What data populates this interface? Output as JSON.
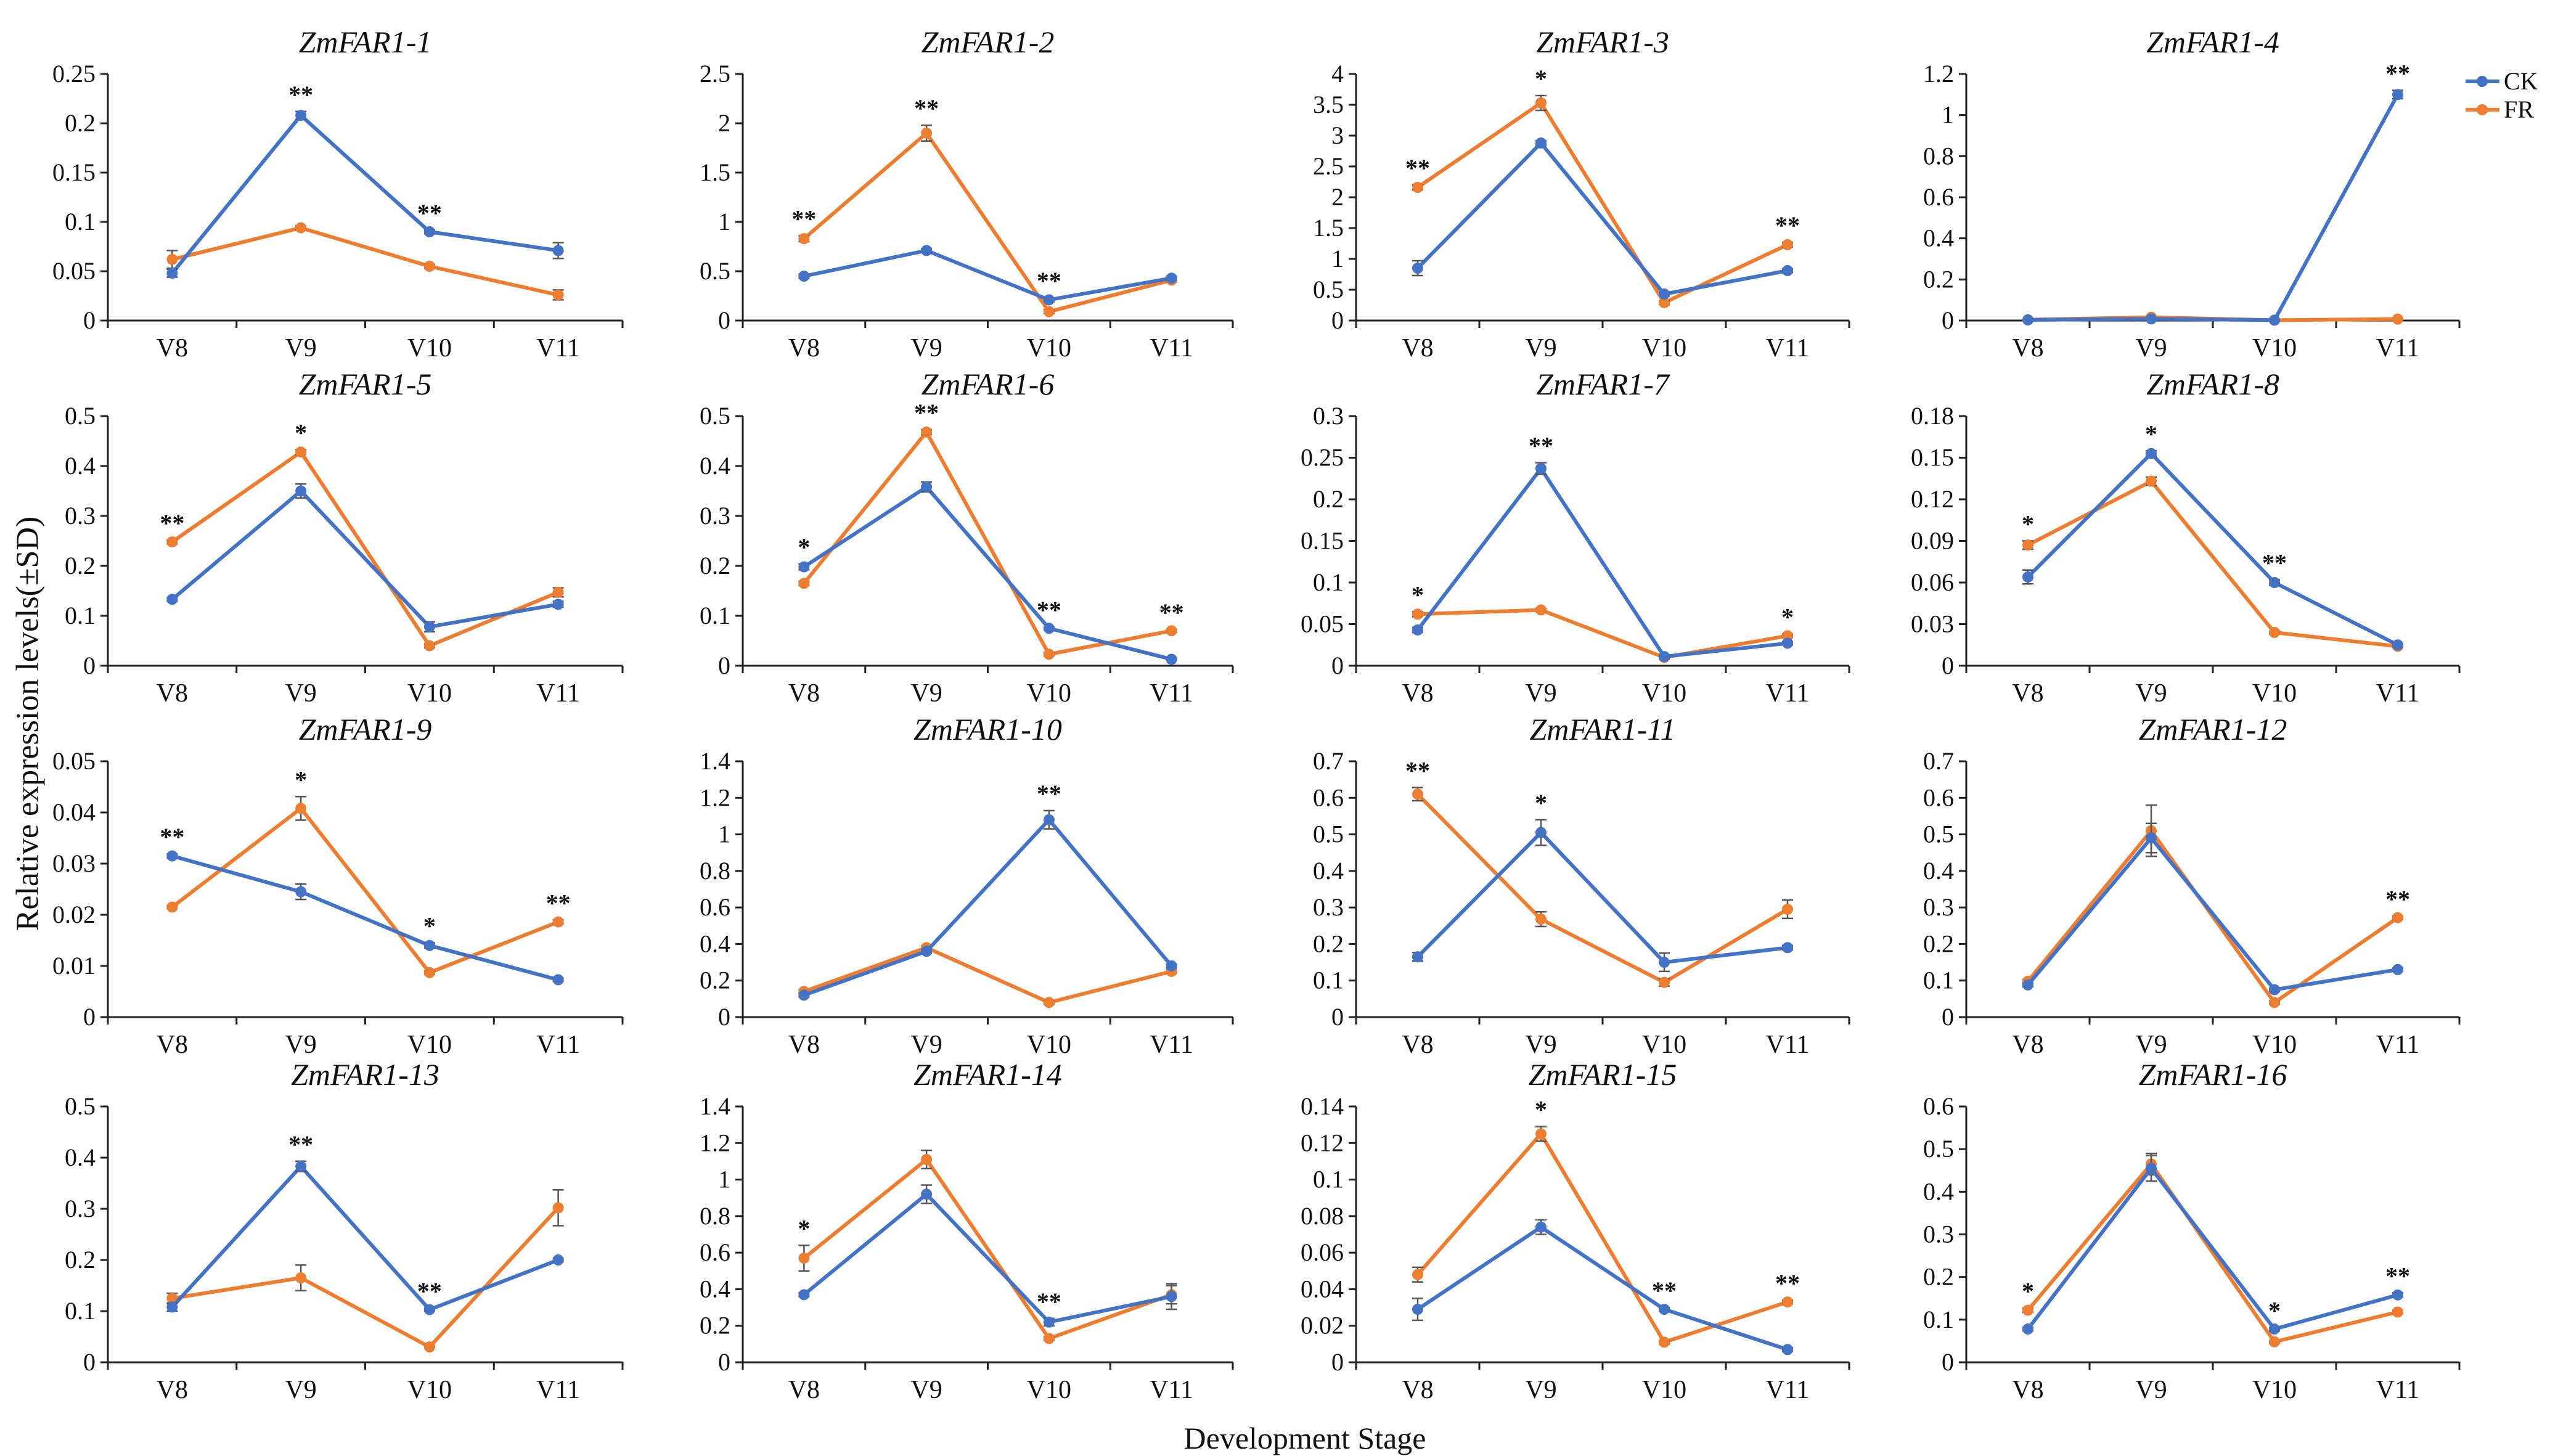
{
  "figure": {
    "ylabel": "Relative expression levels(±SD)",
    "xlabel": "Development Stage",
    "categories": [
      "V8",
      "V9",
      "V10",
      "V11"
    ],
    "legend": [
      {
        "name": "CK",
        "color": "#4472C4"
      },
      {
        "name": "FR",
        "color": "#ED7D31"
      }
    ]
  },
  "chart_data": [
    {
      "type": "line",
      "title": "ZmFAR1-1",
      "categories": [
        "V8",
        "V9",
        "V10",
        "V11"
      ],
      "ylim": [
        0,
        0.25
      ],
      "yticks": [
        "0",
        "0.05",
        "0.1",
        "0.15",
        "0.2",
        "0.25"
      ],
      "series": [
        {
          "name": "CK",
          "values": [
            0.048,
            0.208,
            0.09,
            0.071
          ],
          "errors": [
            0.004,
            0.004,
            0.002,
            0.008
          ]
        },
        {
          "name": "FR",
          "values": [
            0.062,
            0.094,
            0.055,
            0.026
          ],
          "errors": [
            0.009,
            0.002,
            0.002,
            0.005
          ]
        }
      ],
      "annotations": [
        "",
        "**",
        "**",
        ""
      ]
    },
    {
      "type": "line",
      "title": "ZmFAR1-2",
      "categories": [
        "V8",
        "V9",
        "V10",
        "V11"
      ],
      "ylim": [
        0,
        2.5
      ],
      "yticks": [
        "0",
        "0.5",
        "1",
        "1.5",
        "2",
        "2.5"
      ],
      "series": [
        {
          "name": "CK",
          "values": [
            0.45,
            0.71,
            0.21,
            0.43
          ],
          "errors": [
            0.02,
            0.02,
            0.02,
            0.02
          ]
        },
        {
          "name": "FR",
          "values": [
            0.83,
            1.9,
            0.09,
            0.41
          ],
          "errors": [
            0.03,
            0.08,
            0.02,
            0.02
          ]
        }
      ],
      "annotations": [
        "**",
        "**",
        "**",
        ""
      ]
    },
    {
      "type": "line",
      "title": "ZmFAR1-3",
      "categories": [
        "V8",
        "V9",
        "V10",
        "V11"
      ],
      "ylim": [
        0,
        4
      ],
      "yticks": [
        "0",
        "0.5",
        "1",
        "1.5",
        "2",
        "2.5",
        "3",
        "3.5",
        "4"
      ],
      "series": [
        {
          "name": "CK",
          "values": [
            0.85,
            2.88,
            0.43,
            0.81
          ],
          "errors": [
            0.12,
            0.04,
            0.03,
            0.03
          ]
        },
        {
          "name": "FR",
          "values": [
            2.16,
            3.53,
            0.29,
            1.23
          ],
          "errors": [
            0.04,
            0.12,
            0.03,
            0.04
          ]
        }
      ],
      "annotations": [
        "**",
        "*",
        "",
        "**"
      ]
    },
    {
      "type": "line",
      "title": "ZmFAR1-4",
      "categories": [
        "V8",
        "V9",
        "V10",
        "V11"
      ],
      "ylim": [
        0,
        1.2
      ],
      "yticks": [
        "0",
        "0.2",
        "0.4",
        "0.6",
        "0.8",
        "1",
        "1.2"
      ],
      "series": [
        {
          "name": "CK",
          "values": [
            0.003,
            0.008,
            0.002,
            1.1
          ],
          "errors": [
            0.001,
            0.002,
            0.001,
            0.02
          ]
        },
        {
          "name": "FR",
          "values": [
            0.004,
            0.016,
            0.002,
            0.007
          ],
          "errors": [
            0.001,
            0.003,
            0.001,
            0.002
          ]
        }
      ],
      "annotations": [
        "",
        "",
        "",
        "**"
      ]
    },
    {
      "type": "line",
      "title": "ZmFAR1-5",
      "categories": [
        "V8",
        "V9",
        "V10",
        "V11"
      ],
      "ylim": [
        0,
        0.5
      ],
      "yticks": [
        "0",
        "0.1",
        "0.2",
        "0.3",
        "0.4",
        "0.5"
      ],
      "series": [
        {
          "name": "CK",
          "values": [
            0.133,
            0.35,
            0.078,
            0.123
          ],
          "errors": [
            0.004,
            0.014,
            0.01,
            0.006
          ]
        },
        {
          "name": "FR",
          "values": [
            0.248,
            0.428,
            0.04,
            0.147
          ],
          "errors": [
            0.004,
            0.005,
            0.004,
            0.009
          ]
        }
      ],
      "annotations": [
        "**",
        "*",
        "",
        ""
      ]
    },
    {
      "type": "line",
      "title": "ZmFAR1-6",
      "categories": [
        "V8",
        "V9",
        "V10",
        "V11"
      ],
      "ylim": [
        0,
        0.5
      ],
      "yticks": [
        "0",
        "0.1",
        "0.2",
        "0.3",
        "0.4",
        "0.5"
      ],
      "series": [
        {
          "name": "CK",
          "values": [
            0.198,
            0.358,
            0.075,
            0.013
          ],
          "errors": [
            0.006,
            0.01,
            0.003,
            0.002
          ]
        },
        {
          "name": "FR",
          "values": [
            0.165,
            0.468,
            0.023,
            0.07
          ],
          "errors": [
            0.004,
            0.005,
            0.003,
            0.003
          ]
        }
      ],
      "annotations": [
        "*",
        "**",
        "**",
        "**"
      ]
    },
    {
      "type": "line",
      "title": "ZmFAR1-7",
      "categories": [
        "V8",
        "V9",
        "V10",
        "V11"
      ],
      "ylim": [
        0,
        0.3
      ],
      "yticks": [
        "0",
        "0.05",
        "0.1",
        "0.15",
        "0.2",
        "0.25",
        "0.3"
      ],
      "series": [
        {
          "name": "CK",
          "values": [
            0.043,
            0.237,
            0.011,
            0.027
          ],
          "errors": [
            0.003,
            0.007,
            0.002,
            0.002
          ]
        },
        {
          "name": "FR",
          "values": [
            0.062,
            0.067,
            0.01,
            0.036
          ],
          "errors": [
            0.003,
            0.002,
            0.002,
            0.002
          ]
        }
      ],
      "annotations": [
        "*",
        "**",
        "",
        "*"
      ]
    },
    {
      "type": "line",
      "title": "ZmFAR1-8",
      "categories": [
        "V8",
        "V9",
        "V10",
        "V11"
      ],
      "ylim": [
        0,
        0.18
      ],
      "yticks": [
        "0",
        "0.03",
        "0.06",
        "0.09",
        "0.12",
        "0.15",
        "0.18"
      ],
      "series": [
        {
          "name": "CK",
          "values": [
            0.064,
            0.153,
            0.06,
            0.015
          ],
          "errors": [
            0.005,
            0.002,
            0.002,
            0.001
          ]
        },
        {
          "name": "FR",
          "values": [
            0.087,
            0.133,
            0.024,
            0.014
          ],
          "errors": [
            0.003,
            0.003,
            0.001,
            0.001
          ]
        }
      ],
      "annotations": [
        "*",
        "*",
        "**",
        ""
      ]
    },
    {
      "type": "line",
      "title": "ZmFAR1-9",
      "categories": [
        "V8",
        "V9",
        "V10",
        "V11"
      ],
      "ylim": [
        0,
        0.05
      ],
      "yticks": [
        "0",
        "0.01",
        "0.02",
        "0.03",
        "0.04",
        "0.05"
      ],
      "series": [
        {
          "name": "CK",
          "values": [
            0.0315,
            0.0245,
            0.014,
            0.0073
          ],
          "errors": [
            0.0004,
            0.0015,
            0.0005,
            0.0003
          ]
        },
        {
          "name": "FR",
          "values": [
            0.0215,
            0.0408,
            0.0087,
            0.0186
          ],
          "errors": [
            0.0003,
            0.0023,
            0.0003,
            0.0004
          ]
        }
      ],
      "annotations": [
        "**",
        "*",
        "*",
        "**"
      ]
    },
    {
      "type": "line",
      "title": "ZmFAR1-10",
      "categories": [
        "V8",
        "V9",
        "V10",
        "V11"
      ],
      "ylim": [
        0,
        1.4
      ],
      "yticks": [
        "0",
        "0.2",
        "0.4",
        "0.6",
        "0.8",
        "1",
        "1.2",
        "1.4"
      ],
      "series": [
        {
          "name": "CK",
          "values": [
            0.12,
            0.36,
            1.08,
            0.28
          ],
          "errors": [
            0.01,
            0.01,
            0.05,
            0.01
          ]
        },
        {
          "name": "FR",
          "values": [
            0.14,
            0.38,
            0.08,
            0.25
          ],
          "errors": [
            0.01,
            0.01,
            0.01,
            0.01
          ]
        }
      ],
      "annotations": [
        "",
        "",
        "**",
        ""
      ]
    },
    {
      "type": "line",
      "title": "ZmFAR1-11",
      "categories": [
        "V8",
        "V9",
        "V10",
        "V11"
      ],
      "ylim": [
        0,
        0.7
      ],
      "yticks": [
        "0",
        "0.1",
        "0.2",
        "0.3",
        "0.4",
        "0.5",
        "0.6",
        "0.7"
      ],
      "series": [
        {
          "name": "CK",
          "values": [
            0.165,
            0.505,
            0.15,
            0.19
          ],
          "errors": [
            0.012,
            0.035,
            0.025,
            0.006
          ]
        },
        {
          "name": "FR",
          "values": [
            0.61,
            0.268,
            0.095,
            0.295
          ],
          "errors": [
            0.018,
            0.02,
            0.01,
            0.025
          ]
        }
      ],
      "annotations": [
        "**",
        "*",
        "",
        ""
      ]
    },
    {
      "type": "line",
      "title": "ZmFAR1-12",
      "categories": [
        "V8",
        "V9",
        "V10",
        "V11"
      ],
      "ylim": [
        0,
        0.7
      ],
      "yticks": [
        "0",
        "0.1",
        "0.2",
        "0.3",
        "0.4",
        "0.5",
        "0.6",
        "0.7"
      ],
      "series": [
        {
          "name": "CK",
          "values": [
            0.088,
            0.49,
            0.075,
            0.13
          ],
          "errors": [
            0.005,
            0.04,
            0.005,
            0.004
          ]
        },
        {
          "name": "FR",
          "values": [
            0.098,
            0.51,
            0.04,
            0.272
          ],
          "errors": [
            0.005,
            0.07,
            0.004,
            0.005
          ]
        }
      ],
      "annotations": [
        "",
        "",
        "",
        "**"
      ]
    },
    {
      "type": "line",
      "title": "ZmFAR1-13",
      "categories": [
        "V8",
        "V9",
        "V10",
        "V11"
      ],
      "ylim": [
        0,
        0.5
      ],
      "yticks": [
        "0",
        "0.1",
        "0.2",
        "0.3",
        "0.4",
        "0.5"
      ],
      "series": [
        {
          "name": "CK",
          "values": [
            0.108,
            0.383,
            0.103,
            0.2
          ],
          "errors": [
            0.008,
            0.01,
            0.003,
            0.003
          ]
        },
        {
          "name": "FR",
          "values": [
            0.125,
            0.165,
            0.03,
            0.302
          ],
          "errors": [
            0.01,
            0.025,
            0.002,
            0.035
          ]
        }
      ],
      "annotations": [
        "",
        "**",
        "**",
        ""
      ]
    },
    {
      "type": "line",
      "title": "ZmFAR1-14",
      "categories": [
        "V8",
        "V9",
        "V10",
        "V11"
      ],
      "ylim": [
        0,
        1.4
      ],
      "yticks": [
        "0",
        "0.2",
        "0.4",
        "0.6",
        "0.8",
        "1",
        "1.2",
        "1.4"
      ],
      "series": [
        {
          "name": "CK",
          "values": [
            0.37,
            0.92,
            0.22,
            0.36
          ],
          "errors": [
            0.01,
            0.05,
            0.02,
            0.07
          ]
        },
        {
          "name": "FR",
          "values": [
            0.57,
            1.11,
            0.13,
            0.37
          ],
          "errors": [
            0.07,
            0.05,
            0.01,
            0.05
          ]
        }
      ],
      "annotations": [
        "*",
        "",
        "**",
        ""
      ]
    },
    {
      "type": "line",
      "title": "ZmFAR1-15",
      "categories": [
        "V8",
        "V9",
        "V10",
        "V11"
      ],
      "ylim": [
        0,
        0.14
      ],
      "yticks": [
        "0",
        "0.02",
        "0.04",
        "0.06",
        "0.08",
        "0.1",
        "0.12",
        "0.14"
      ],
      "series": [
        {
          "name": "CK",
          "values": [
            0.029,
            0.074,
            0.029,
            0.007
          ],
          "errors": [
            0.006,
            0.004,
            0.001,
            0.001
          ]
        },
        {
          "name": "FR",
          "values": [
            0.048,
            0.125,
            0.011,
            0.033
          ],
          "errors": [
            0.004,
            0.004,
            0.001,
            0.001
          ]
        }
      ],
      "annotations": [
        "",
        "*",
        "**",
        "**"
      ]
    },
    {
      "type": "line",
      "title": "ZmFAR1-16",
      "categories": [
        "V8",
        "V9",
        "V10",
        "V11"
      ],
      "ylim": [
        0,
        0.6
      ],
      "yticks": [
        "0",
        "0.1",
        "0.2",
        "0.3",
        "0.4",
        "0.5",
        "0.6"
      ],
      "series": [
        {
          "name": "CK",
          "values": [
            0.078,
            0.455,
            0.078,
            0.158
          ],
          "errors": [
            0.004,
            0.03,
            0.004,
            0.005
          ]
        },
        {
          "name": "FR",
          "values": [
            0.122,
            0.465,
            0.048,
            0.118
          ],
          "errors": [
            0.005,
            0.025,
            0.003,
            0.004
          ]
        }
      ],
      "annotations": [
        "*",
        "",
        "*",
        "**"
      ]
    }
  ]
}
